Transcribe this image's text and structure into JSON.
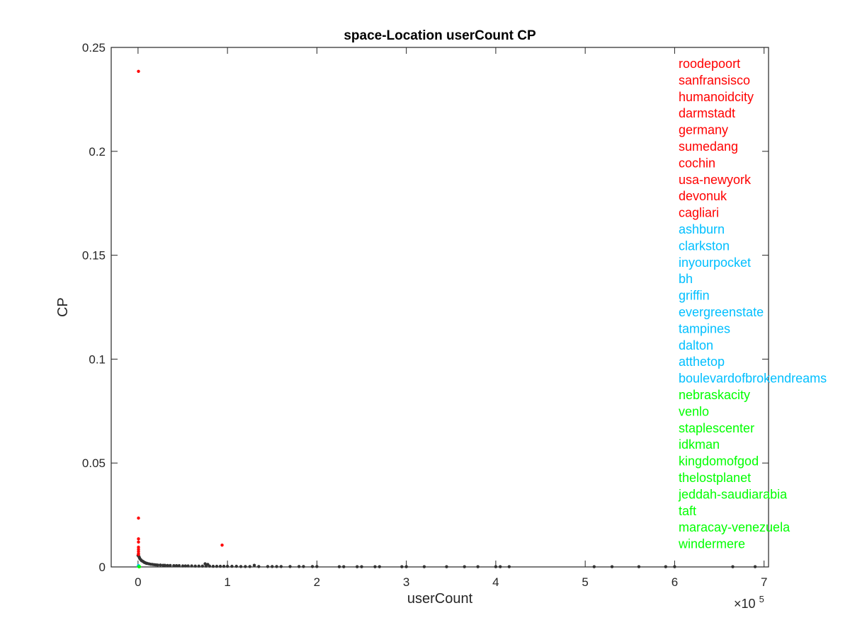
{
  "chart_data": {
    "type": "scatter",
    "title": "space-Location userCount CP",
    "xlabel": "userCount",
    "ylabel": "CP",
    "x_exponent_label": "×10",
    "x_exponent_power": "5",
    "x_scale": 100000,
    "xlim": [
      -0.3,
      7.05
    ],
    "ylim": [
      0,
      0.25
    ],
    "xticks": [
      0,
      1,
      2,
      3,
      4,
      5,
      6,
      7
    ],
    "xtick_labels": [
      "0",
      "1",
      "2",
      "3",
      "4",
      "5",
      "6",
      "7"
    ],
    "yticks": [
      0,
      0.05,
      0.1,
      0.15,
      0.2,
      0.25
    ],
    "ytick_labels": [
      "0",
      "0.05",
      "0.1",
      "0.15",
      "0.2",
      "0.25"
    ],
    "grid": false,
    "legend_placement": "right",
    "series": [
      {
        "color": "#ff0000",
        "labels": [
          "roodepoort",
          "sanfransisco",
          "humanoidcity",
          "darmstadt",
          "germany",
          "sumedang",
          "cochin",
          "usa-newyork",
          "devonuk",
          "cagliari"
        ],
        "points": [
          [
            0.005,
            0.2385
          ],
          [
            0.005,
            0.0235
          ],
          [
            0.005,
            0.0135
          ],
          [
            0.005,
            0.012
          ],
          [
            0.005,
            0.0095
          ],
          [
            0.005,
            0.0085
          ],
          [
            0.005,
            0.0075
          ],
          [
            0.005,
            0.0065
          ],
          [
            0.005,
            0.006
          ],
          [
            0.94,
            0.0105
          ]
        ]
      },
      {
        "color": "#00bfff",
        "labels": [
          "ashburn",
          "clarkston",
          "inyourpocket",
          "bh",
          "griffin",
          "evergreenstate",
          "tampines",
          "dalton",
          "atthetop",
          "boulevardofbrokendreams"
        ],
        "points": [
          [
            0.005,
            0.0006
          ],
          [
            0.006,
            0.0005
          ],
          [
            0.007,
            0.0004
          ],
          [
            0.005,
            0.0003
          ],
          [
            0.008,
            0.0005
          ],
          [
            0.006,
            0.0004
          ],
          [
            0.005,
            0.0006
          ],
          [
            0.007,
            0.0003
          ],
          [
            0.006,
            0.0005
          ],
          [
            0.005,
            0.0004
          ]
        ]
      },
      {
        "color": "#00ff00",
        "labels": [
          "nebraskacity",
          "venlo",
          "staplescenter",
          "idkman",
          "kingdomofgod",
          "thelostplanet",
          "jeddah-saudiarabia",
          "taft",
          "maracay-venezuela",
          "windermere"
        ],
        "points": [
          [
            0.01,
            0.0001
          ],
          [
            0.012,
            0.0001
          ],
          [
            0.015,
            0.0001
          ],
          [
            0.01,
            0.0001
          ],
          [
            0.014,
            0.0001
          ],
          [
            0.012,
            0.0001
          ],
          [
            0.011,
            0.0001
          ],
          [
            0.013,
            0.0001
          ],
          [
            0.016,
            0.0001
          ],
          [
            0.01,
            0.0001
          ]
        ]
      },
      {
        "color": "#333333",
        "labels": [],
        "points": [
          [
            0.0,
            0.0055
          ],
          [
            0.01,
            0.005
          ],
          [
            0.015,
            0.0045
          ],
          [
            0.02,
            0.004
          ],
          [
            0.03,
            0.0035
          ],
          [
            0.04,
            0.003
          ],
          [
            0.05,
            0.0028
          ],
          [
            0.06,
            0.0025
          ],
          [
            0.07,
            0.0022
          ],
          [
            0.08,
            0.002
          ],
          [
            0.09,
            0.0018
          ],
          [
            0.1,
            0.0017
          ],
          [
            0.12,
            0.0015
          ],
          [
            0.14,
            0.0013
          ],
          [
            0.16,
            0.0012
          ],
          [
            0.18,
            0.0011
          ],
          [
            0.2,
            0.001
          ],
          [
            0.22,
            0.0009
          ],
          [
            0.25,
            0.0009
          ],
          [
            0.28,
            0.0008
          ],
          [
            0.3,
            0.0008
          ],
          [
            0.33,
            0.0007
          ],
          [
            0.36,
            0.0007
          ],
          [
            0.4,
            0.0006
          ],
          [
            0.43,
            0.0006
          ],
          [
            0.46,
            0.0006
          ],
          [
            0.5,
            0.0005
          ],
          [
            0.53,
            0.0005
          ],
          [
            0.56,
            0.0005
          ],
          [
            0.6,
            0.0005
          ],
          [
            0.64,
            0.0004
          ],
          [
            0.68,
            0.0004
          ],
          [
            0.72,
            0.0004
          ],
          [
            0.76,
            0.0004
          ],
          [
            0.8,
            0.0004
          ],
          [
            0.75,
            0.0015
          ],
          [
            0.78,
            0.0012
          ],
          [
            0.84,
            0.0003
          ],
          [
            0.88,
            0.0003
          ],
          [
            0.92,
            0.0003
          ],
          [
            0.96,
            0.0003
          ],
          [
            1.0,
            0.0003
          ],
          [
            1.05,
            0.0003
          ],
          [
            1.1,
            0.0003
          ],
          [
            1.15,
            0.0002
          ],
          [
            1.2,
            0.0002
          ],
          [
            1.25,
            0.0002
          ],
          [
            1.3,
            0.0008
          ],
          [
            1.35,
            0.0002
          ],
          [
            1.45,
            0.0002
          ],
          [
            1.5,
            0.0002
          ],
          [
            1.55,
            0.0002
          ],
          [
            1.6,
            0.0002
          ],
          [
            1.7,
            0.0002
          ],
          [
            1.8,
            0.0002
          ],
          [
            1.85,
            0.0002
          ],
          [
            1.95,
            0.0002
          ],
          [
            2.0,
            0.0002
          ],
          [
            2.25,
            0.0001
          ],
          [
            2.3,
            0.0001
          ],
          [
            2.45,
            0.0001
          ],
          [
            2.5,
            0.0001
          ],
          [
            2.65,
            0.0001
          ],
          [
            2.7,
            0.0001
          ],
          [
            2.95,
            0.0001
          ],
          [
            3.0,
            0.0001
          ],
          [
            3.2,
            0.0001
          ],
          [
            3.45,
            0.0001
          ],
          [
            3.65,
            0.0001
          ],
          [
            3.8,
            0.0001
          ],
          [
            4.0,
            0.0001
          ],
          [
            4.05,
            0.0001
          ],
          [
            4.15,
            0.0001
          ],
          [
            5.1,
            0.0001
          ],
          [
            5.3,
            0.0001
          ],
          [
            5.6,
            0.0001
          ],
          [
            5.9,
            0.0001
          ],
          [
            6.0,
            0.0001
          ],
          [
            6.65,
            0.0001
          ],
          [
            6.9,
            0.0001
          ]
        ]
      }
    ]
  }
}
